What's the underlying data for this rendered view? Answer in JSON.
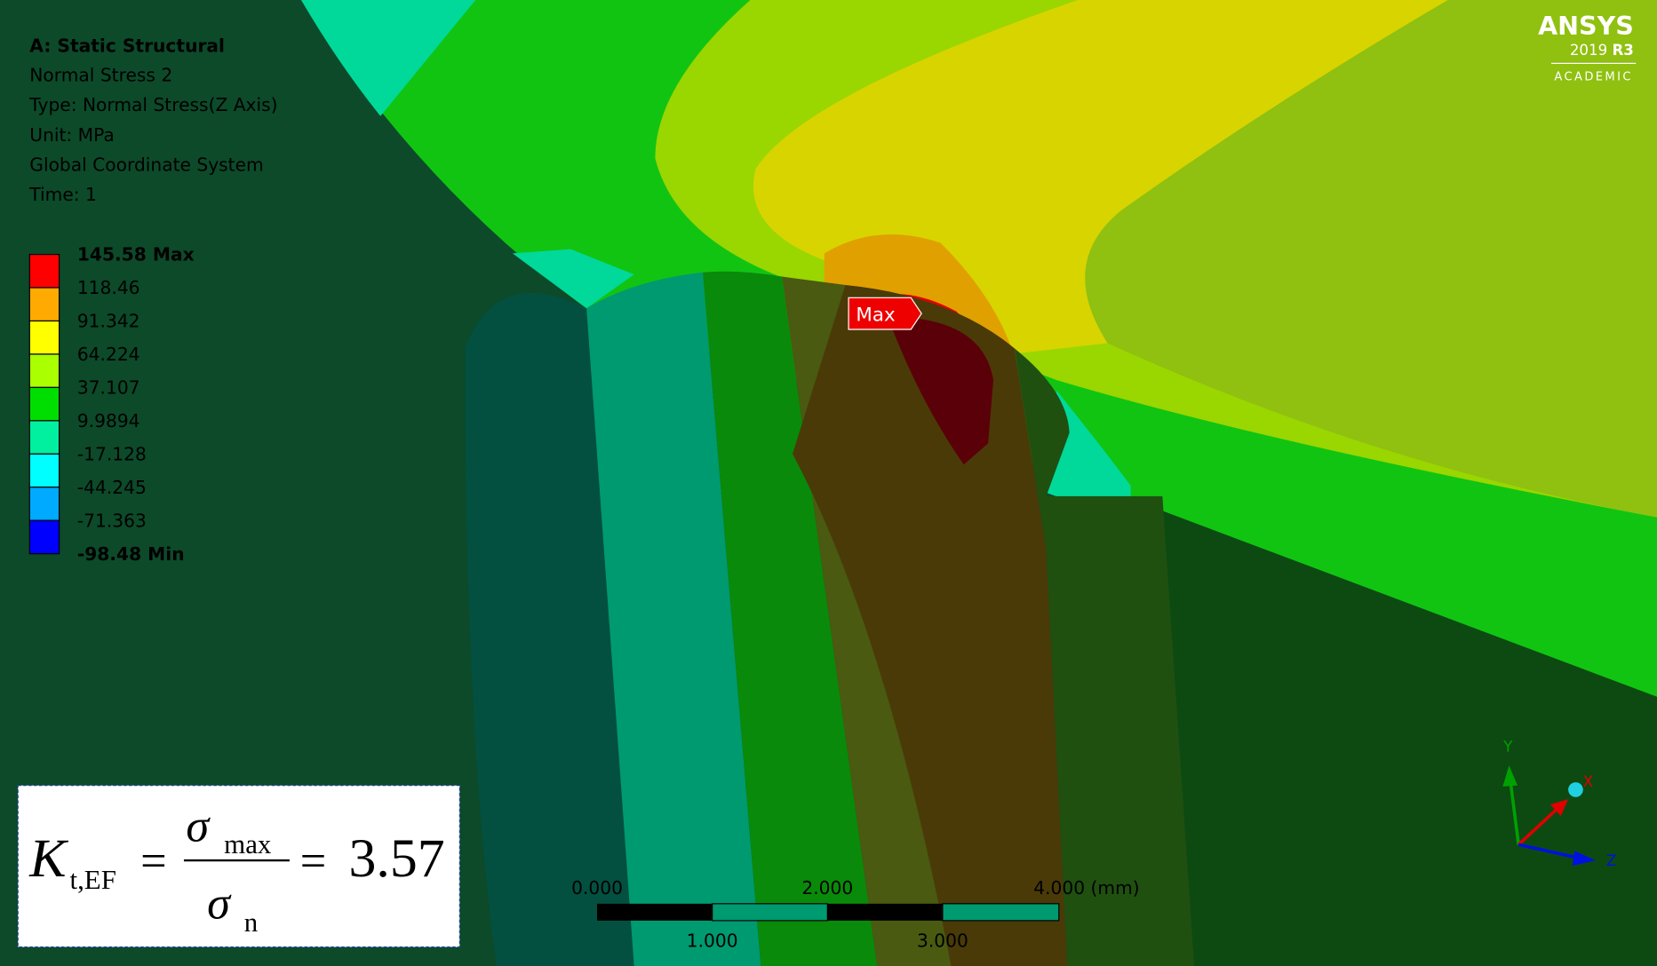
{
  "header": {
    "title": "A: Static Structural",
    "lines": [
      "Normal Stress 2",
      "Type: Normal Stress(Z Axis)",
      "Unit: MPa",
      "Global Coordinate System",
      "Time: 1"
    ]
  },
  "legend": {
    "labels": [
      "145.58 Max",
      "118.46",
      "91.342",
      "64.224",
      "37.107",
      "9.9894",
      "-17.128",
      "-44.245",
      "-71.363",
      "-98.48 Min"
    ],
    "colors": [
      "#ff0000",
      "#ffaa00",
      "#ffff00",
      "#aaff00",
      "#00dd00",
      "#00f0a0",
      "#00ffff",
      "#00aaff",
      "#0000ff"
    ]
  },
  "probe": {
    "label": "Max"
  },
  "logo": {
    "name": "ANSYS",
    "year": "2019",
    "release": "R3",
    "edition": "ACADEMIC"
  },
  "formula": {
    "symbol": "K",
    "subscript": "t,EF",
    "equals": "=",
    "numerator": "σ",
    "numerator_sub": "max",
    "denominator": "σ",
    "denominator_sub": "n",
    "result": "3.57"
  },
  "scale_bar": {
    "top_labels": [
      "0.000",
      "2.000",
      "4.000 (mm)"
    ],
    "bottom_labels": [
      "1.000",
      "3.000"
    ]
  },
  "triad": {
    "x": "X",
    "y": "Y",
    "z": "Z"
  }
}
